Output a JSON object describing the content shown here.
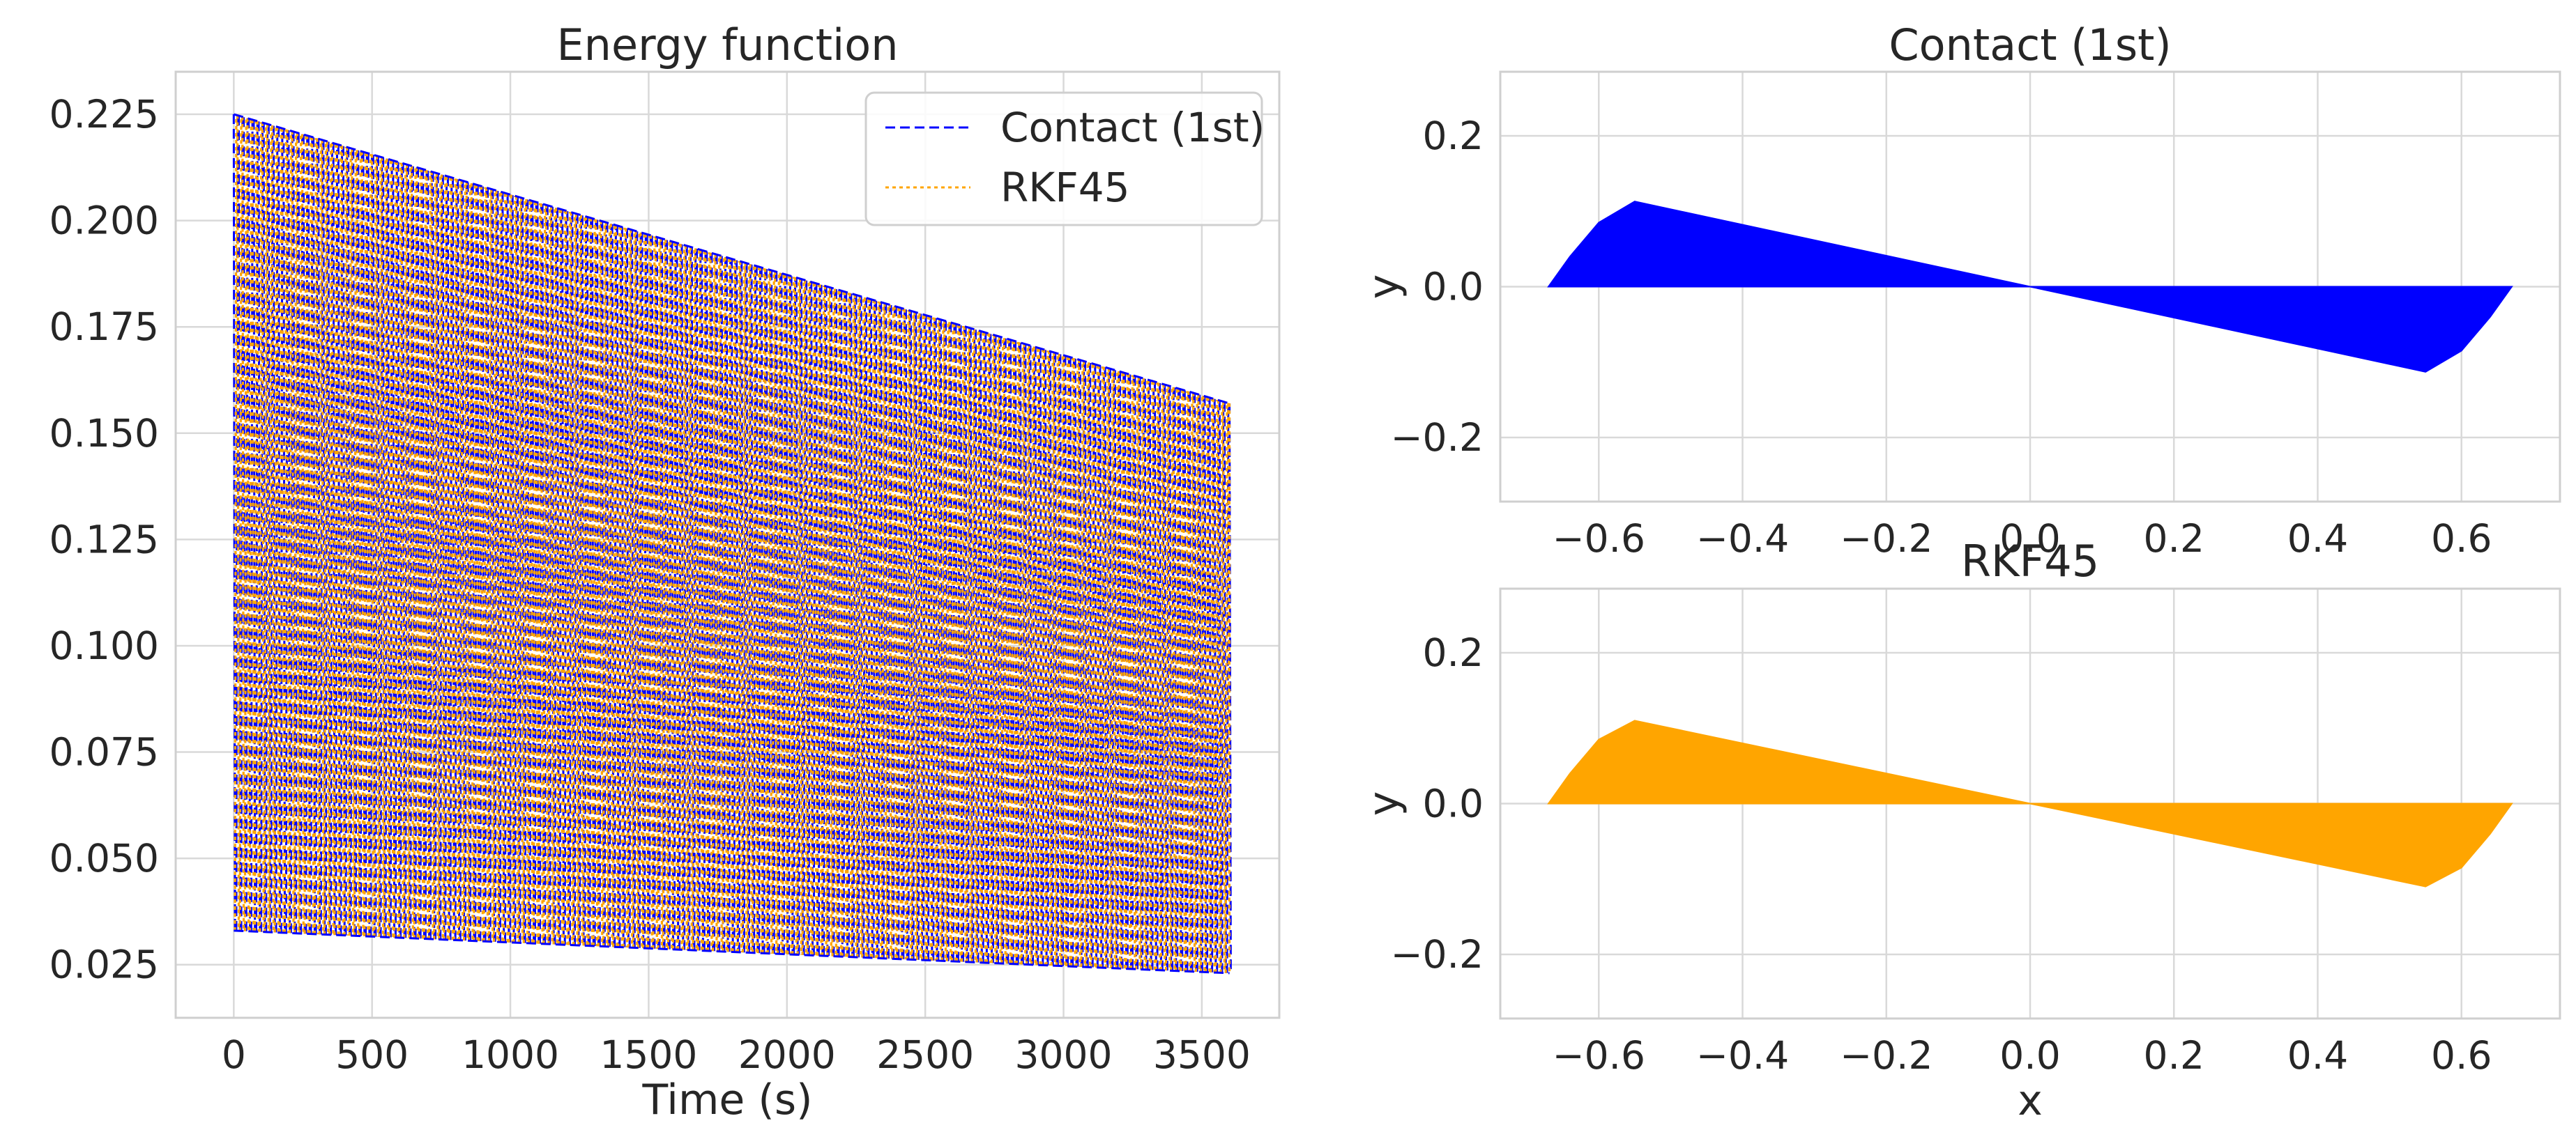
{
  "colors": {
    "contact": "#0000ff",
    "rkf45": "#ffa500",
    "grid": "#d9d9d9",
    "frame": "#cfcfcf",
    "text": "#262626"
  },
  "chart_data": [
    {
      "type": "line",
      "title": "Energy function",
      "xlabel": "Time (s)",
      "ylabel": "",
      "xlim": [
        -210,
        3780
      ],
      "ylim": [
        0.0125,
        0.235
      ],
      "xticks": [
        0,
        500,
        1000,
        1500,
        2000,
        2500,
        3000,
        3500
      ],
      "xtick_labels": [
        "0",
        "500",
        "1000",
        "1500",
        "2000",
        "2500",
        "3000",
        "3500"
      ],
      "yticks": [
        0.025,
        0.05,
        0.075,
        0.1,
        0.125,
        0.15,
        0.175,
        0.2,
        0.225
      ],
      "ytick_labels": [
        "0.025",
        "0.050",
        "0.075",
        "0.100",
        "0.125",
        "0.150",
        "0.175",
        "0.200",
        "0.225"
      ],
      "grid": true,
      "legend": "top-right",
      "series": [
        {
          "name": "Contact (1st)",
          "style": "dashed",
          "color": "#0000ff"
        },
        {
          "name": "RKF45",
          "style": "dotted",
          "color": "#ffa500"
        }
      ],
      "envelope": {
        "x": [
          0,
          3600
        ],
        "upper": [
          0.225,
          0.157
        ],
        "lower": [
          0.033,
          0.023
        ]
      }
    },
    {
      "type": "area",
      "title": "Contact (1st)",
      "xlabel": "",
      "ylabel": "y",
      "xlim": [
        -0.737,
        0.737
      ],
      "ylim": [
        -0.285,
        0.285
      ],
      "xticks": [
        -0.6,
        -0.4,
        -0.2,
        0.0,
        0.2,
        0.4,
        0.6
      ],
      "xtick_labels": [
        "−0.6",
        "−0.4",
        "−0.2",
        "0.0",
        "0.2",
        "0.4",
        "0.6"
      ],
      "yticks": [
        -0.2,
        0.0,
        0.2
      ],
      "ytick_labels": [
        "−0.2",
        "0.0",
        "0.2"
      ],
      "grid": true,
      "color": "#0000ff",
      "x": [
        -0.67,
        -0.64,
        -0.6,
        -0.55,
        0.0,
        0.55,
        0.6,
        0.64,
        0.67
      ],
      "y_upper": [
        0.0,
        0.04,
        0.085,
        0.113,
        0.0,
        0.0,
        0.0,
        0.0,
        0.0
      ],
      "y_lower": [
        0.0,
        0.0,
        0.0,
        0.0,
        0.0,
        -0.113,
        -0.085,
        -0.04,
        0.0
      ]
    },
    {
      "type": "area",
      "title": "RKF45",
      "xlabel": "x",
      "ylabel": "y",
      "xlim": [
        -0.737,
        0.737
      ],
      "ylim": [
        -0.285,
        0.285
      ],
      "xticks": [
        -0.6,
        -0.4,
        -0.2,
        0.0,
        0.2,
        0.4,
        0.6
      ],
      "xtick_labels": [
        "−0.6",
        "−0.4",
        "−0.2",
        "0.0",
        "0.2",
        "0.4",
        "0.6"
      ],
      "yticks": [
        -0.2,
        0.0,
        0.2
      ],
      "ytick_labels": [
        "−0.2",
        "0.0",
        "0.2"
      ],
      "grid": true,
      "color": "#ffa500",
      "x": [
        -0.67,
        -0.64,
        -0.6,
        -0.55,
        0.0,
        0.55,
        0.6,
        0.64,
        0.67
      ],
      "y_upper": [
        0.0,
        0.04,
        0.085,
        0.11,
        0.0,
        0.0,
        0.0,
        0.0,
        0.0
      ],
      "y_lower": [
        0.0,
        0.0,
        0.0,
        0.0,
        0.0,
        -0.11,
        -0.085,
        -0.04,
        0.0
      ]
    }
  ]
}
